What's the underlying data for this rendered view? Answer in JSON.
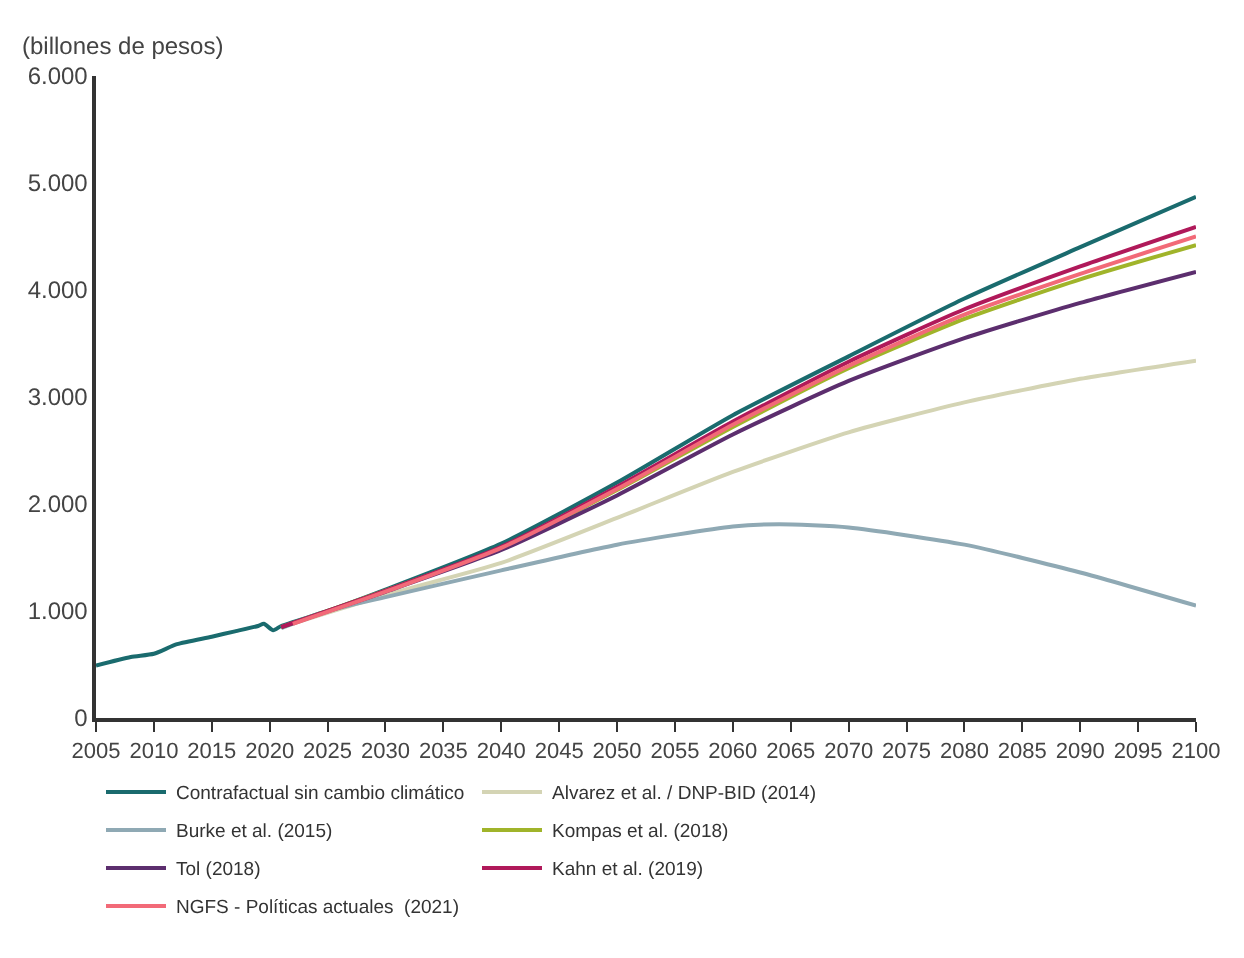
{
  "chart_data": {
    "type": "line",
    "ylabel": "(billones de pesos)",
    "xlim": [
      2005,
      2100
    ],
    "xticks": [
      2005,
      2010,
      2015,
      2020,
      2025,
      2030,
      2035,
      2040,
      2045,
      2050,
      2055,
      2060,
      2065,
      2070,
      2075,
      2080,
      2085,
      2090,
      2095,
      2100
    ],
    "ylim": [
      0,
      6000
    ],
    "yticks": [
      0,
      {
        "value": 1000,
        "label": "1.000"
      },
      {
        "value": 2000,
        "label": "2.000"
      },
      {
        "value": 3000,
        "label": "3.000"
      },
      {
        "value": 4000,
        "label": "4.000"
      },
      {
        "value": 5000,
        "label": "5.000"
      },
      {
        "value": 6000,
        "label": "6.000"
      }
    ],
    "legend": "bottom",
    "marker": "none",
    "line_style": "solid",
    "series": [
      {
        "name": "Contrafactual sin cambio climático",
        "color": "#1a6b6e",
        "x": [
          2005,
          2008,
          2010,
          2012,
          2015,
          2017,
          2019,
          2019.5,
          2020.3,
          2021,
          2025,
          2030,
          2040,
          2050,
          2060,
          2070,
          2080,
          2090,
          2100
        ],
        "values": [
          490,
          570,
          600,
          690,
          760,
          810,
          860,
          880,
          820,
          860,
          1000,
          1200,
          1630,
          2200,
          2830,
          3380,
          3920,
          4400,
          4870
        ]
      },
      {
        "name": "Alvarez et al. / DNP-BID (2014)",
        "color": "#d4d4b4",
        "x": [
          2021,
          2030,
          2040,
          2050,
          2060,
          2070,
          2080,
          2090,
          2100
        ],
        "values": [
          850,
          1150,
          1450,
          1870,
          2300,
          2670,
          2950,
          3170,
          3340
        ]
      },
      {
        "name": "Burke et al. (2015)",
        "color": "#8fa9b4",
        "x": [
          2021,
          2025,
          2030,
          2040,
          2050,
          2060,
          2064,
          2070,
          2080,
          2090,
          2100
        ],
        "values": [
          840,
          1000,
          1130,
          1380,
          1620,
          1790,
          1810,
          1780,
          1620,
          1360,
          1050
        ]
      },
      {
        "name": "Kompas et al. (2018)",
        "color": "#a0b42a",
        "x": [
          2021,
          2030,
          2040,
          2050,
          2060,
          2070,
          2080,
          2090,
          2100
        ],
        "values": [
          850,
          1190,
          1590,
          2130,
          2720,
          3270,
          3730,
          4100,
          4420
        ]
      },
      {
        "name": "Tol (2018)",
        "color": "#5c2e6e",
        "x": [
          2021,
          2030,
          2040,
          2050,
          2060,
          2070,
          2080,
          2090,
          2100
        ],
        "values": [
          850,
          1180,
          1570,
          2080,
          2650,
          3150,
          3550,
          3880,
          4170
        ]
      },
      {
        "name": "Kahn et al. (2019)",
        "color": "#b0195a",
        "x": [
          2021,
          2030,
          2040,
          2050,
          2060,
          2070,
          2080,
          2090,
          2100
        ],
        "values": [
          850,
          1190,
          1600,
          2160,
          2770,
          3330,
          3820,
          4220,
          4590
        ]
      },
      {
        "name": "NGFS - Políticas actuales  (2021)",
        "color": "#f26a78",
        "x": [
          2022,
          2030,
          2040,
          2050,
          2060,
          2070,
          2080,
          2090,
          2100
        ],
        "values": [
          880,
          1180,
          1590,
          2140,
          2740,
          3290,
          3770,
          4150,
          4500
        ]
      }
    ]
  }
}
